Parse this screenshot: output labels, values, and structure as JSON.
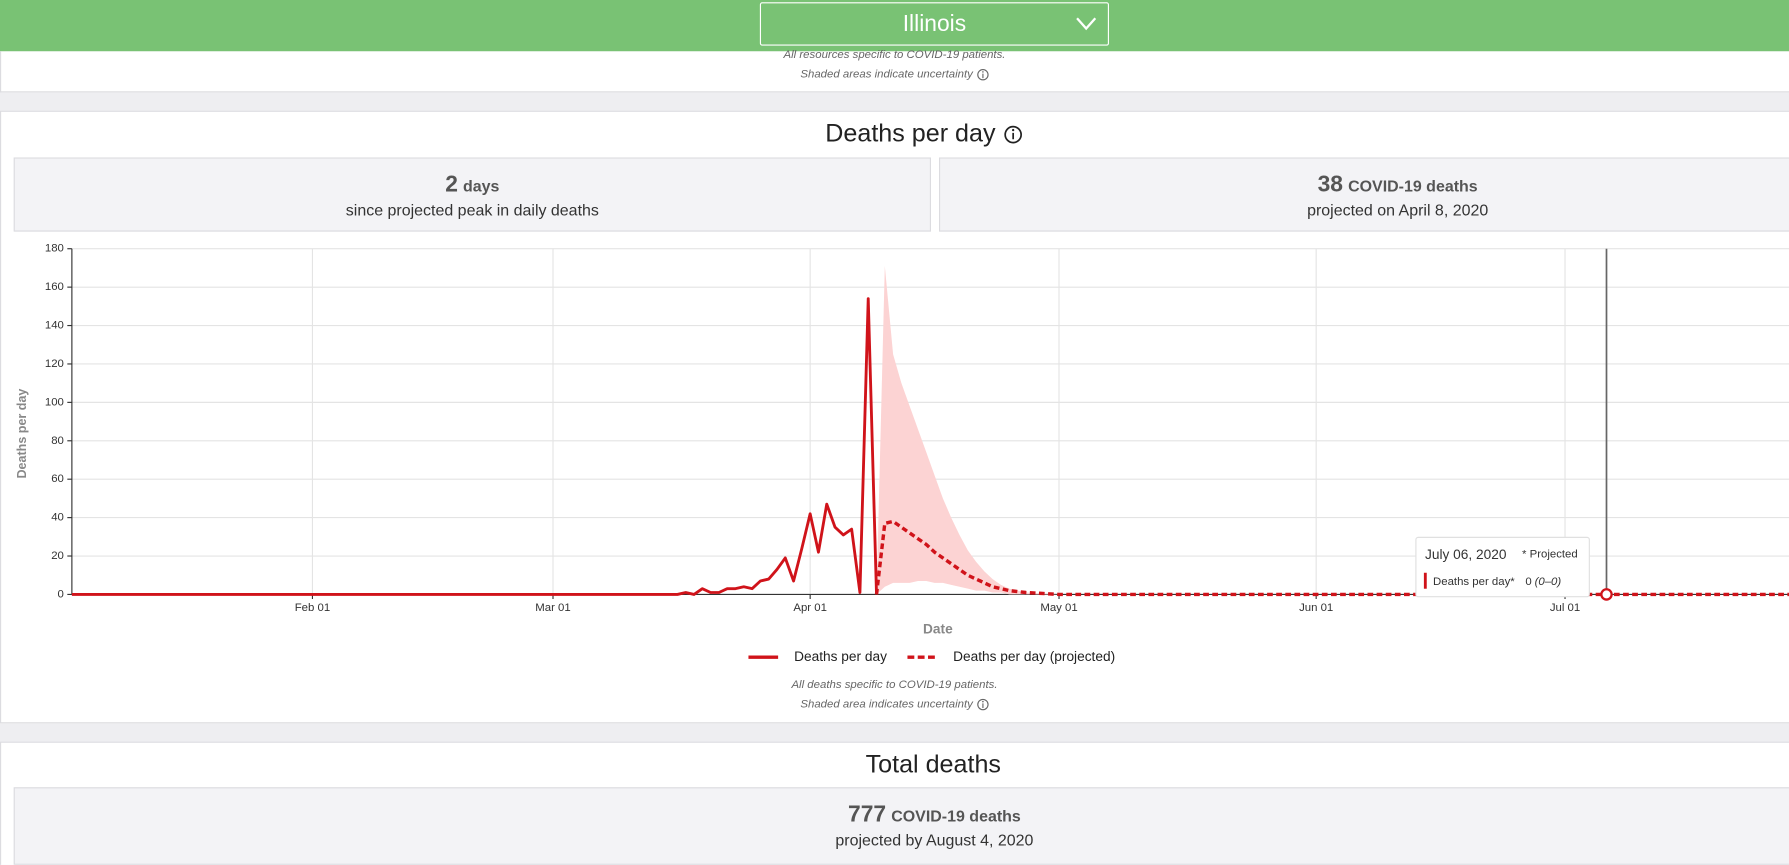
{
  "header": {
    "state": "Illinois"
  },
  "top_notes": [
    "All resources specific to COVID-19 patients.",
    "Shaded areas indicate uncertainty"
  ],
  "deaths_section": {
    "stats": [
      {
        "number": "2",
        "unit": "days",
        "caption": "since projected peak in daily deaths"
      },
      {
        "number": "38",
        "unit": "COVID-19 deaths",
        "caption": "projected on April 8, 2020"
      }
    ],
    "notes": [
      "All deaths specific to COVID-19 patients.",
      "Shaded area indicates uncertainty"
    ]
  },
  "chart_data": {
    "type": "line",
    "title": "Deaths per day",
    "xlabel": "Date",
    "ylabel": "Deaths per day",
    "xlim": [
      3,
      210
    ],
    "ylim": [
      0,
      180
    ],
    "xticks": [
      {
        "value": 32,
        "label": "Feb 01"
      },
      {
        "value": 61,
        "label": "Mar 01"
      },
      {
        "value": 92,
        "label": "Apr 01"
      },
      {
        "value": 122,
        "label": "May 01"
      },
      {
        "value": 153,
        "label": "Jun 01"
      },
      {
        "value": 183,
        "label": "Jul 01"
      }
    ],
    "yticks": [
      0,
      20,
      40,
      60,
      80,
      100,
      120,
      140,
      160,
      180
    ],
    "grid": true,
    "series": [
      {
        "name": "Deaths per day",
        "color": "#d0131a",
        "dashed": false,
        "x": [
          3,
          76,
          77,
          78,
          79,
          80,
          81,
          82,
          83,
          84,
          85,
          86,
          87,
          88,
          89,
          90,
          91,
          92,
          93,
          94,
          95,
          96,
          97,
          98,
          99,
          100
        ],
        "values": [
          0,
          0,
          1,
          0,
          3,
          1,
          1,
          3,
          3,
          4,
          3,
          7,
          8,
          13,
          19,
          7,
          24,
          42,
          22,
          47,
          35,
          31,
          34,
          1,
          154,
          0
        ]
      },
      {
        "name": "Deaths per day (projected)",
        "color": "#d0131a",
        "dashed": true,
        "x": [
          100,
          101,
          102,
          103,
          104,
          105,
          106,
          107,
          108,
          109,
          110,
          111,
          112,
          113,
          114,
          115,
          116,
          118,
          122,
          188,
          210
        ],
        "values": [
          0,
          37,
          38,
          35,
          32,
          29,
          26,
          22,
          19,
          16,
          13,
          10,
          8,
          6,
          4,
          3,
          2,
          1,
          0,
          0,
          0
        ]
      }
    ],
    "band": {
      "color": "#fcd3d3",
      "x": [
        100,
        101,
        102,
        103,
        104,
        105,
        106,
        107,
        108,
        109,
        110,
        111,
        112,
        113,
        114,
        115,
        116,
        118,
        122
      ],
      "upper": [
        0,
        171,
        125,
        110,
        98,
        86,
        74,
        62,
        50,
        40,
        31,
        23,
        17,
        12,
        8,
        5,
        3,
        1,
        0
      ],
      "lower": [
        0,
        4,
        6,
        6,
        6,
        7,
        7,
        6,
        6,
        5,
        4,
        3,
        2,
        2,
        1,
        1,
        0,
        0,
        0
      ]
    },
    "tooltip": {
      "date": "July 06, 2020",
      "note": "* Projected",
      "label": "Deaths per day*",
      "value": "0",
      "range": "(0–0)"
    }
  },
  "total_section": {
    "title": "Total deaths",
    "number": "777",
    "unit": "COVID-19 deaths",
    "caption": "projected by August 4, 2020"
  }
}
